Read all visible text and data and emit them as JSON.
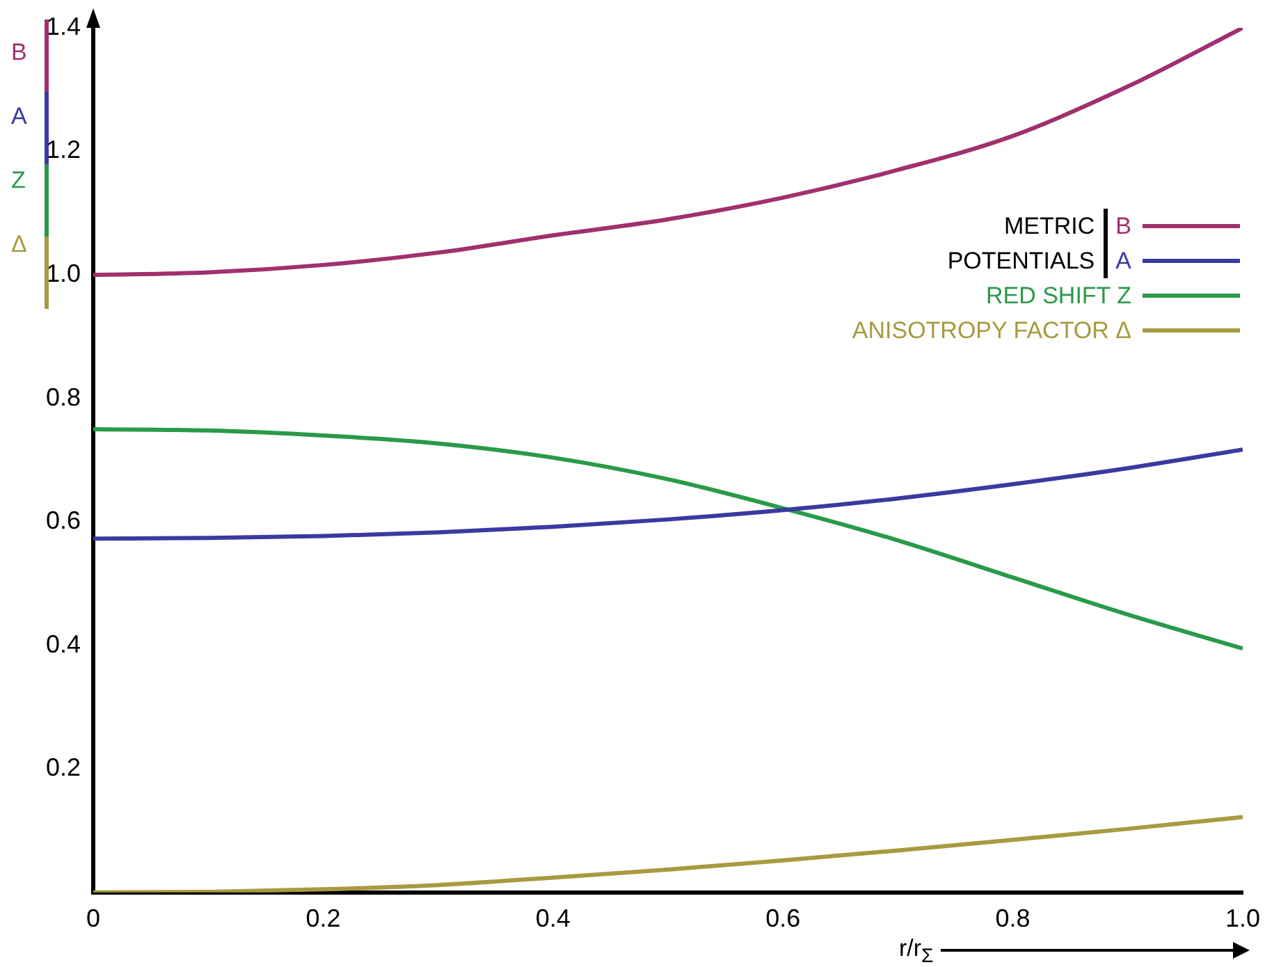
{
  "chart_data": {
    "type": "line",
    "xlabel": "r/r$_{Σ}$",
    "legend_title": "METRIC POTENTIALS",
    "x": [
      0,
      0.1,
      0.2,
      0.3,
      0.4,
      0.5,
      0.6,
      0.7,
      0.8,
      0.9,
      1.0
    ],
    "series": [
      {
        "name": "B",
        "color": "#a0306e",
        "values": [
          1.0,
          1.004,
          1.016,
          1.036,
          1.064,
          1.09,
          1.125,
          1.17,
          1.225,
          1.305,
          1.4
        ]
      },
      {
        "name": "A",
        "color": "#3a3aa0",
        "values": [
          0.573,
          0.574,
          0.577,
          0.583,
          0.592,
          0.604,
          0.619,
          0.638,
          0.661,
          0.687,
          0.717
        ]
      },
      {
        "name": "RED SHIFT Z",
        "color": "#2a9a4a",
        "values": [
          0.75,
          0.748,
          0.74,
          0.727,
          0.704,
          0.669,
          0.622,
          0.57,
          0.51,
          0.45,
          0.395
        ]
      },
      {
        "name": "ANISOTROPY FACTOR Δ",
        "color": "#a89a40",
        "values": [
          0,
          0.001,
          0.005,
          0.012,
          0.024,
          0.037,
          0.052,
          0.068,
          0.085,
          0.103,
          0.122
        ]
      }
    ],
    "annotations": [
      "B",
      "A",
      "Z",
      "Δ"
    ],
    "xlim": [
      0,
      1.0
    ],
    "xticks": [
      0,
      0.2,
      0.4,
      0.6,
      0.8,
      {
        "value": 1.0,
        "label": "1.0"
      }
    ],
    "ylim": [
      0,
      1.4
    ],
    "yticks": [
      0.2,
      0.4,
      0.6,
      0.8,
      {
        "value": 1.0,
        "label": "1.0"
      },
      1.2,
      1.4
    ],
    "grid": false,
    "legend": "top right",
    "marker": "none",
    "line_style": "solid"
  }
}
